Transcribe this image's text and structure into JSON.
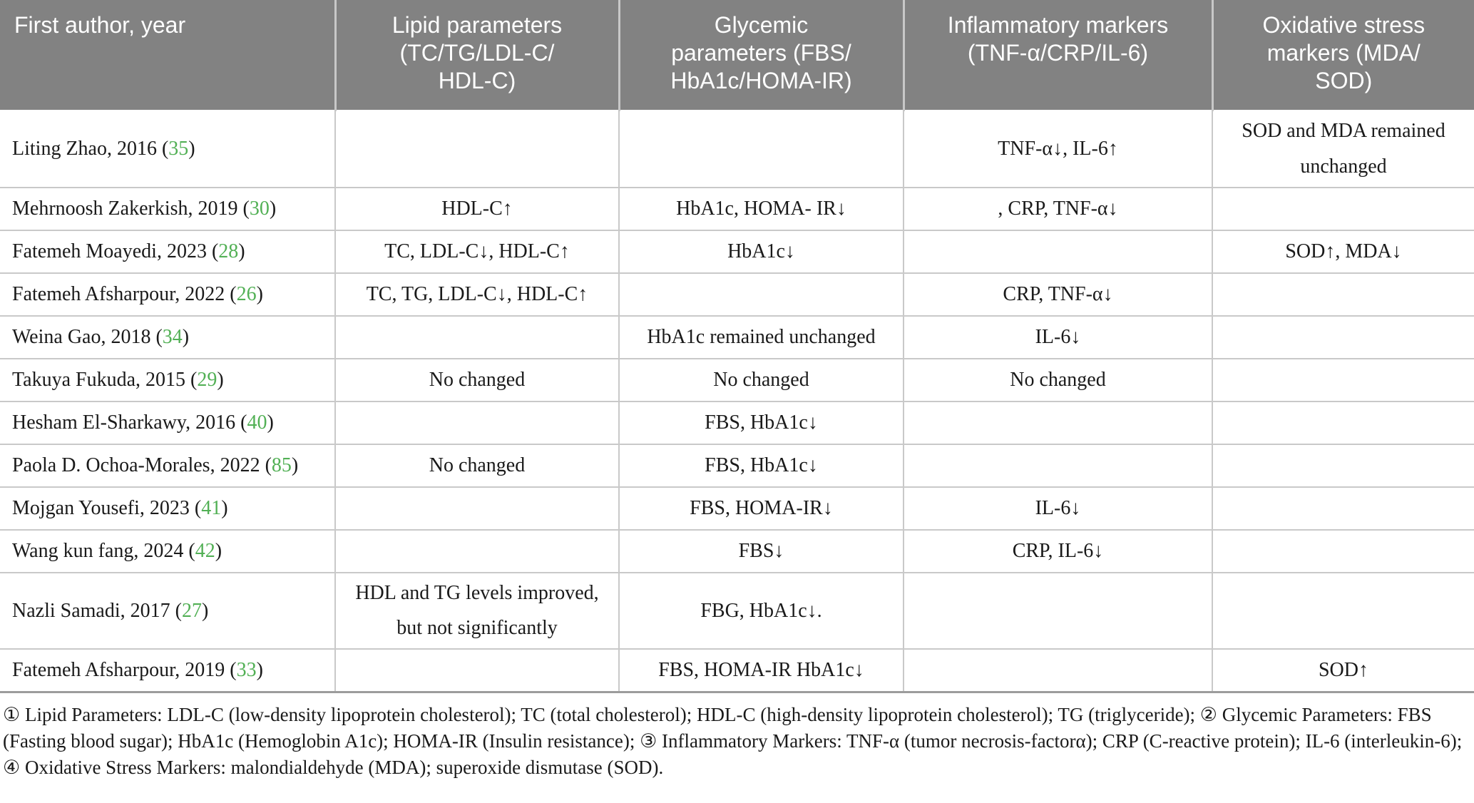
{
  "colors": {
    "header_background": "#828282",
    "header_text": "#ffffff",
    "reference_green": "#52b055",
    "grid_line": "#c9c9c9"
  },
  "table": {
    "columns": [
      {
        "id": "author",
        "lines": [
          "First author, year"
        ]
      },
      {
        "id": "lipid",
        "lines": [
          "Lipid parameters",
          "(TC/TG/LDL-C/",
          "HDL-C)"
        ]
      },
      {
        "id": "glycemic",
        "lines": [
          "Glycemic",
          "parameters (FBS/",
          "HbA1c/HOMA-IR)"
        ]
      },
      {
        "id": "inflammatory",
        "lines": [
          "Inflammatory markers",
          "(TNF-α/CRP/IL-6)"
        ]
      },
      {
        "id": "oxidative",
        "lines": [
          "Oxidative stress",
          "markers (MDA/",
          "SOD)"
        ]
      }
    ],
    "rows": [
      {
        "author": "Liting Zhao, 2016",
        "ref": "35",
        "lipid": "",
        "glycemic": "",
        "inflammatory": "TNF-α↓, IL-6↑",
        "oxidative": "SOD and MDA remained unchanged"
      },
      {
        "author": "Mehrnoosh Zakerkish, 2019",
        "ref": "30",
        "lipid": "HDL-C↑",
        "glycemic": "HbA1c, HOMA- IR↓",
        "inflammatory": ", CRP, TNF-α↓",
        "oxidative": ""
      },
      {
        "author": "Fatemeh Moayedi, 2023",
        "ref": "28",
        "lipid": "TC, LDL-C↓, HDL-C↑",
        "glycemic": "HbA1c↓",
        "inflammatory": "",
        "oxidative": "SOD↑, MDA↓"
      },
      {
        "author": "Fatemeh Afsharpour, 2022",
        "ref": "26",
        "lipid": "TC, TG, LDL-C↓, HDL-C↑",
        "glycemic": "",
        "inflammatory": "CRP, TNF-α↓",
        "oxidative": ""
      },
      {
        "author": "Weina Gao, 2018",
        "ref": "34",
        "lipid": "",
        "glycemic": "HbA1c remained unchanged",
        "inflammatory": "IL-6↓",
        "oxidative": ""
      },
      {
        "author": "Takuya Fukuda, 2015",
        "ref": "29",
        "lipid": "No changed",
        "glycemic": "No changed",
        "inflammatory": "No changed",
        "oxidative": ""
      },
      {
        "author": "Hesham El-Sharkawy, 2016",
        "ref": "40",
        "lipid": "",
        "glycemic": "FBS, HbA1c↓",
        "inflammatory": "",
        "oxidative": ""
      },
      {
        "author": "Paola D. Ochoa-Morales, 2022",
        "ref": "85",
        "lipid": "No changed",
        "glycemic": "FBS, HbA1c↓",
        "inflammatory": "",
        "oxidative": ""
      },
      {
        "author": "Mojgan Yousefi, 2023",
        "ref": "41",
        "lipid": "",
        "glycemic": "FBS, HOMA-IR↓",
        "inflammatory": "IL-6↓",
        "oxidative": ""
      },
      {
        "author": "Wang kun fang, 2024",
        "ref": "42",
        "lipid": "",
        "glycemic": "FBS↓",
        "inflammatory": "CRP, IL-6↓",
        "oxidative": ""
      },
      {
        "author": "Nazli Samadi, 2017",
        "ref": "27",
        "lipid": "HDL and TG levels improved, but not significantly",
        "glycemic": "FBG, HbA1c↓.",
        "inflammatory": "",
        "oxidative": ""
      },
      {
        "author": "Fatemeh Afsharpour, 2019",
        "ref": "33",
        "lipid": "",
        "glycemic": "FBS, HOMA-IR HbA1c↓",
        "inflammatory": "",
        "oxidative": "SOD↑"
      }
    ]
  },
  "footnote": {
    "text": "① Lipid Parameters: LDL-C (low-density lipoprotein cholesterol); TC (total cholesterol); HDL-C (high-density lipoprotein cholesterol); TG (triglyceride); ② Glycemic Parameters: FBS (Fasting blood sugar); HbA1c (Hemoglobin A1c); HOMA-IR (Insulin resistance); ③ Inflammatory Markers: TNF-α (tumor necrosis-factorα); CRP (C-reactive protein); IL-6 (interleukin-6); ④ Oxidative Stress Markers: malondialdehyde (MDA); superoxide dismutase (SOD)."
  }
}
